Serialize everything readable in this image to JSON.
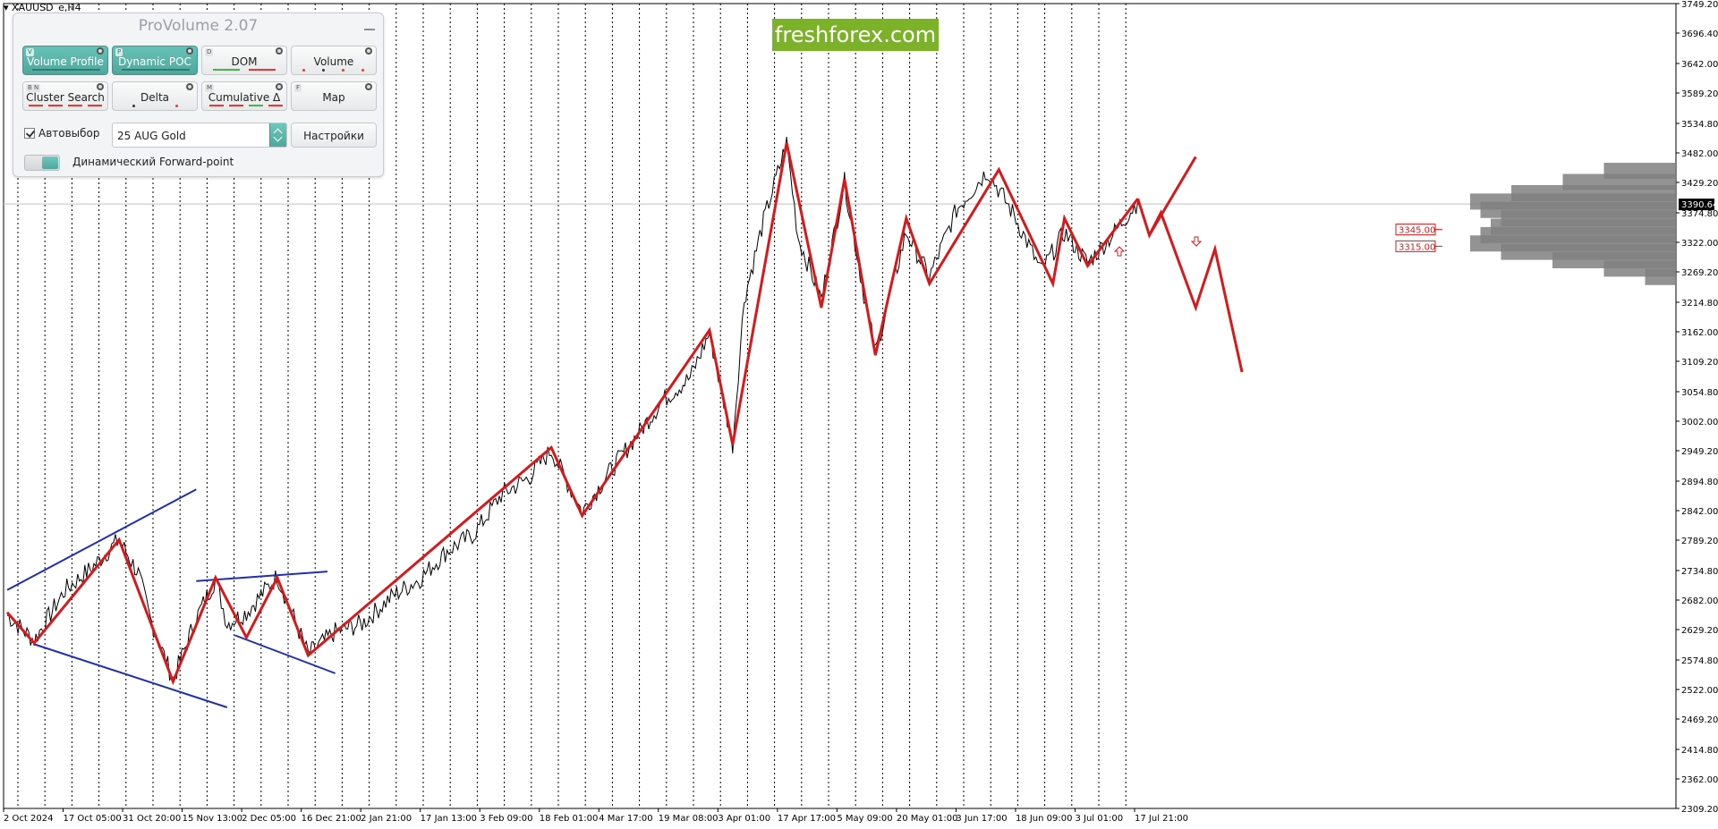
{
  "symbol": "XAUUSD_e,H4",
  "brand": "freshforex.com",
  "panel": {
    "title": "ProVolume 2.07",
    "buttons": [
      {
        "key": "V",
        "label": "Volume Profile",
        "active": true
      },
      {
        "key": "P",
        "label": "Dynamic POC",
        "active": true
      },
      {
        "key": "D",
        "label": "DOM",
        "active": false
      },
      {
        "key": "",
        "label": "Volume",
        "active": false
      },
      {
        "key": "B N",
        "label": "Cluster Search",
        "active": false
      },
      {
        "key": "",
        "label": "Delta",
        "active": false
      },
      {
        "key": "M",
        "label": "Cumulative Δ",
        "active": false
      },
      {
        "key": "F",
        "label": "Map",
        "active": false
      }
    ],
    "autoselect_label": "Автовыбор",
    "autoselect_checked": true,
    "contract": "25 AUG Gold",
    "settings_label": "Настройки",
    "forward_label": "Динамический Forward-point",
    "accent_color": "#56b0a5"
  },
  "chart_data": {
    "type": "line",
    "title": "XAUUSD_e,H4",
    "ylim": [
      2309.2,
      3749.2
    ],
    "y_ticks": [
      "3749.20",
      "3696.40",
      "3642.00",
      "3589.20",
      "3534.80",
      "3482.00",
      "3429.20",
      "3374.80",
      "3322.00",
      "3269.20",
      "3214.80",
      "3162.00",
      "3109.20",
      "3054.80",
      "3002.00",
      "2949.20",
      "2894.80",
      "2842.00",
      "2789.20",
      "2734.80",
      "2682.00",
      "2629.20",
      "2574.80",
      "2522.00",
      "2469.20",
      "2414.80",
      "2362.00",
      "2309.20"
    ],
    "x_ticks": [
      "2 Oct 2024",
      "17 Oct 05:00",
      "31 Oct 20:00",
      "15 Nov 13:00",
      "2 Dec 05:00",
      "16 Dec 21:00",
      "2 Jan 21:00",
      "17 Jan 13:00",
      "3 Feb 09:00",
      "18 Feb 01:00",
      "4 Mar 17:00",
      "19 Mar 08:00",
      "3 Apr 01:00",
      "17 Apr 17:00",
      "5 May 09:00",
      "20 May 01:00",
      "3 Jun 17:00",
      "18 Jun 09:00",
      "3 Jul 01:00",
      "17 Jul 21:00"
    ],
    "current_price": "3390.64",
    "price_series": [
      {
        "date": "2 Oct 2024",
        "close": 2655
      },
      {
        "date": "9 Oct 2024",
        "close": 2610
      },
      {
        "date": "17 Oct 2024",
        "close": 2700
      },
      {
        "date": "24 Oct 2024",
        "close": 2740
      },
      {
        "date": "31 Oct 2024",
        "close": 2790
      },
      {
        "date": "5 Nov 2024",
        "close": 2730
      },
      {
        "date": "8 Nov 2024",
        "close": 2650
      },
      {
        "date": "14 Nov 2024",
        "close": 2540
      },
      {
        "date": "20 Nov 2024",
        "close": 2650
      },
      {
        "date": "25 Nov 2024",
        "close": 2720
      },
      {
        "date": "28 Nov 2024",
        "close": 2640
      },
      {
        "date": "3 Dec 2024",
        "close": 2660
      },
      {
        "date": "11 Dec 2024",
        "close": 2725
      },
      {
        "date": "19 Dec 2024",
        "close": 2585
      },
      {
        "date": "26 Dec 2024",
        "close": 2625
      },
      {
        "date": "2 Jan 2025",
        "close": 2640
      },
      {
        "date": "10 Jan 2025",
        "close": 2690
      },
      {
        "date": "17 Jan 2025",
        "close": 2720
      },
      {
        "date": "24 Jan 2025",
        "close": 2770
      },
      {
        "date": "31 Jan 2025",
        "close": 2800
      },
      {
        "date": "7 Feb 2025",
        "close": 2870
      },
      {
        "date": "14 Feb 2025",
        "close": 2900
      },
      {
        "date": "20 Feb 2025",
        "close": 2950
      },
      {
        "date": "28 Feb 2025",
        "close": 2840
      },
      {
        "date": "7 Mar 2025",
        "close": 2910
      },
      {
        "date": "14 Mar 2025",
        "close": 2975
      },
      {
        "date": "21 Mar 2025",
        "close": 3040
      },
      {
        "date": "28 Mar 2025",
        "close": 3080
      },
      {
        "date": "2 Apr 2025",
        "close": 3160
      },
      {
        "date": "8 Apr 2025",
        "close": 2960
      },
      {
        "date": "11 Apr 2025",
        "close": 3220
      },
      {
        "date": "16 Apr 2025",
        "close": 3360
      },
      {
        "date": "22 Apr 2025",
        "close": 3500
      },
      {
        "date": "25 Apr 2025",
        "close": 3330
      },
      {
        "date": "1 May 2025",
        "close": 3220
      },
      {
        "date": "7 May 2025",
        "close": 3430
      },
      {
        "date": "12 May 2025",
        "close": 3230
      },
      {
        "date": "15 May 2025",
        "close": 3125
      },
      {
        "date": "23 May 2025",
        "close": 3340
      },
      {
        "date": "29 May 2025",
        "close": 3260
      },
      {
        "date": "5 Jun 2025",
        "close": 3380
      },
      {
        "date": "13 Jun 2025",
        "close": 3450
      },
      {
        "date": "20 Jun 2025",
        "close": 3370
      },
      {
        "date": "27 Jun 2025",
        "close": 3270
      },
      {
        "date": "3 Jul 2025",
        "close": 3340
      },
      {
        "date": "9 Jul 2025",
        "close": 3285
      },
      {
        "date": "16 Jul 2025",
        "close": 3340
      },
      {
        "date": "22 Jul 2025",
        "close": 3395
      }
    ],
    "zigzag": [
      {
        "date": "2 Oct 2024",
        "value": 2660
      },
      {
        "date": "9 Oct 2024",
        "value": 2605
      },
      {
        "date": "31 Oct 2024",
        "value": 2790
      },
      {
        "date": "14 Nov 2024",
        "value": 2536
      },
      {
        "date": "25 Nov 2024",
        "value": 2722
      },
      {
        "date": "3 Dec 2024",
        "value": 2615
      },
      {
        "date": "11 Dec 2024",
        "value": 2722
      },
      {
        "date": "19 Dec 2024",
        "value": 2583
      },
      {
        "date": "20 Feb 2025",
        "value": 2955
      },
      {
        "date": "28 Feb 2025",
        "value": 2833
      },
      {
        "date": "2 Apr 2025",
        "value": 3165
      },
      {
        "date": "8 Apr 2025",
        "value": 2960
      },
      {
        "date": "22 Apr 2025",
        "value": 3500
      },
      {
        "date": "1 May 2025",
        "value": 3205
      },
      {
        "date": "7 May 2025",
        "value": 3435
      },
      {
        "date": "15 May 2025",
        "value": 3120
      },
      {
        "date": "23 May 2025",
        "value": 3365
      },
      {
        "date": "29 May 2025",
        "value": 3248
      },
      {
        "date": "16 Jun 2025",
        "value": 3452
      },
      {
        "date": "30 Jun 2025",
        "value": 3248
      },
      {
        "date": "3 Jul 2025",
        "value": 3365
      },
      {
        "date": "9 Jul 2025",
        "value": 3280
      },
      {
        "date": "22 Jul 2025",
        "value": 3400
      }
    ],
    "forecast": [
      {
        "date": "22 Jul 2025",
        "value": 3400
      },
      {
        "date": "25 Jul 2025",
        "value": 3335
      },
      {
        "date": "28 Jul 2025",
        "value": 3375
      },
      {
        "date": "6 Aug 2025",
        "value": 3205
      },
      {
        "date": "11 Aug 2025",
        "value": 3310
      },
      {
        "date": "18 Aug 2025",
        "value": 3090
      }
    ],
    "forecast_alt": [
      {
        "date": "25 Jul 2025",
        "value": 3335
      },
      {
        "date": "6 Aug 2025",
        "value": 3475
      }
    ],
    "channels": [
      {
        "name": "channel-1-upper",
        "from": {
          "date": "2 Oct 2024",
          "value": 2700
        },
        "to": {
          "date": "20 Nov 2024",
          "value": 2880
        }
      },
      {
        "name": "channel-1-lower",
        "from": {
          "date": "9 Oct 2024",
          "value": 2603
        },
        "to": {
          "date": "28 Nov 2024",
          "value": 2490
        }
      },
      {
        "name": "channel-2-upper",
        "from": {
          "date": "20 Nov 2024",
          "value": 2716
        },
        "to": {
          "date": "24 Dec 2024",
          "value": 2733
        }
      },
      {
        "name": "channel-2-lower",
        "from": {
          "date": "30 Nov 2024",
          "value": 2619
        },
        "to": {
          "date": "26 Dec 2024",
          "value": 2551
        }
      }
    ],
    "levels": [
      {
        "label": "3345.00",
        "value": 3345.0
      },
      {
        "label": "3315.00",
        "value": 3315.0
      }
    ],
    "volume_profile": [
      {
        "price": 3450,
        "size": 0.35
      },
      {
        "price": 3430,
        "size": 0.55
      },
      {
        "price": 3410,
        "size": 0.8
      },
      {
        "price": 3395,
        "size": 1.0
      },
      {
        "price": 3380,
        "size": 0.95
      },
      {
        "price": 3365,
        "size": 0.85
      },
      {
        "price": 3350,
        "size": 0.9
      },
      {
        "price": 3335,
        "size": 0.95
      },
      {
        "price": 3320,
        "size": 1.0
      },
      {
        "price": 3305,
        "size": 0.85
      },
      {
        "price": 3290,
        "size": 0.6
      },
      {
        "price": 3275,
        "size": 0.35
      },
      {
        "price": 3260,
        "size": 0.15
      }
    ],
    "colors": {
      "price": "#000000",
      "zigzag": "#d7191c",
      "channel": "#1f2fb5",
      "grid": "#000000",
      "volume": "#808080"
    }
  }
}
